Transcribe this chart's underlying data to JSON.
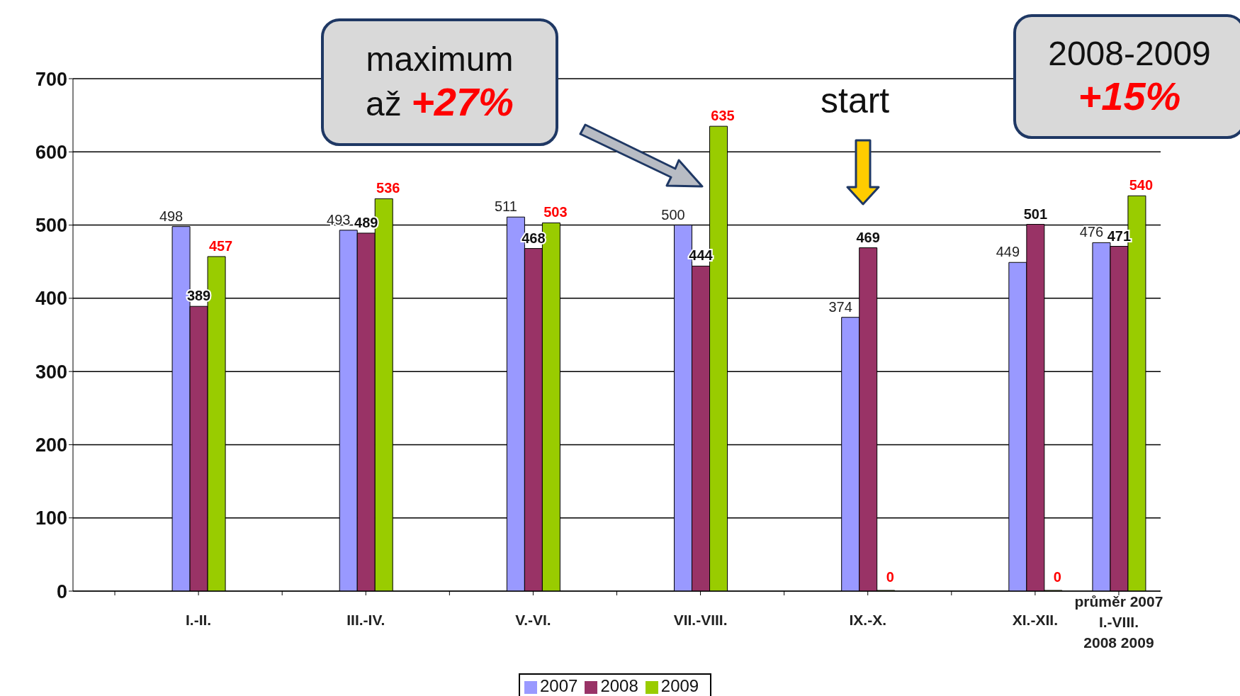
{
  "chart_data": {
    "type": "bar",
    "categories": [
      null,
      "I.-II.",
      null,
      "III.-IV.",
      null,
      "V.-VI.",
      null,
      "VII.-VIII.",
      null,
      "IX.-X.",
      null,
      "XI.-XII.",
      "průměr 2007 I.-VIII. 2008 2009"
    ],
    "series": [
      {
        "name": "2007",
        "color": "#9999ff",
        "values": [
          null,
          498,
          null,
          493,
          null,
          511,
          null,
          500,
          null,
          374,
          null,
          449,
          476
        ]
      },
      {
        "name": "2008",
        "color": "#993366",
        "values": [
          null,
          389,
          null,
          489,
          null,
          468,
          null,
          444,
          null,
          469,
          null,
          501,
          471
        ]
      },
      {
        "name": "2009",
        "color": "#99cc00",
        "values": [
          null,
          457,
          null,
          536,
          null,
          503,
          null,
          635,
          null,
          0,
          null,
          0,
          540
        ]
      }
    ],
    "ylim": [
      0,
      700
    ],
    "yticks": [
      0,
      100,
      200,
      300,
      400,
      500,
      600,
      700
    ],
    "grid": "y",
    "legend": "bottom",
    "data_labels": true,
    "annotations": [
      "maximum",
      "až",
      "+27%",
      "start",
      "2008-2009",
      "+15%"
    ]
  }
}
